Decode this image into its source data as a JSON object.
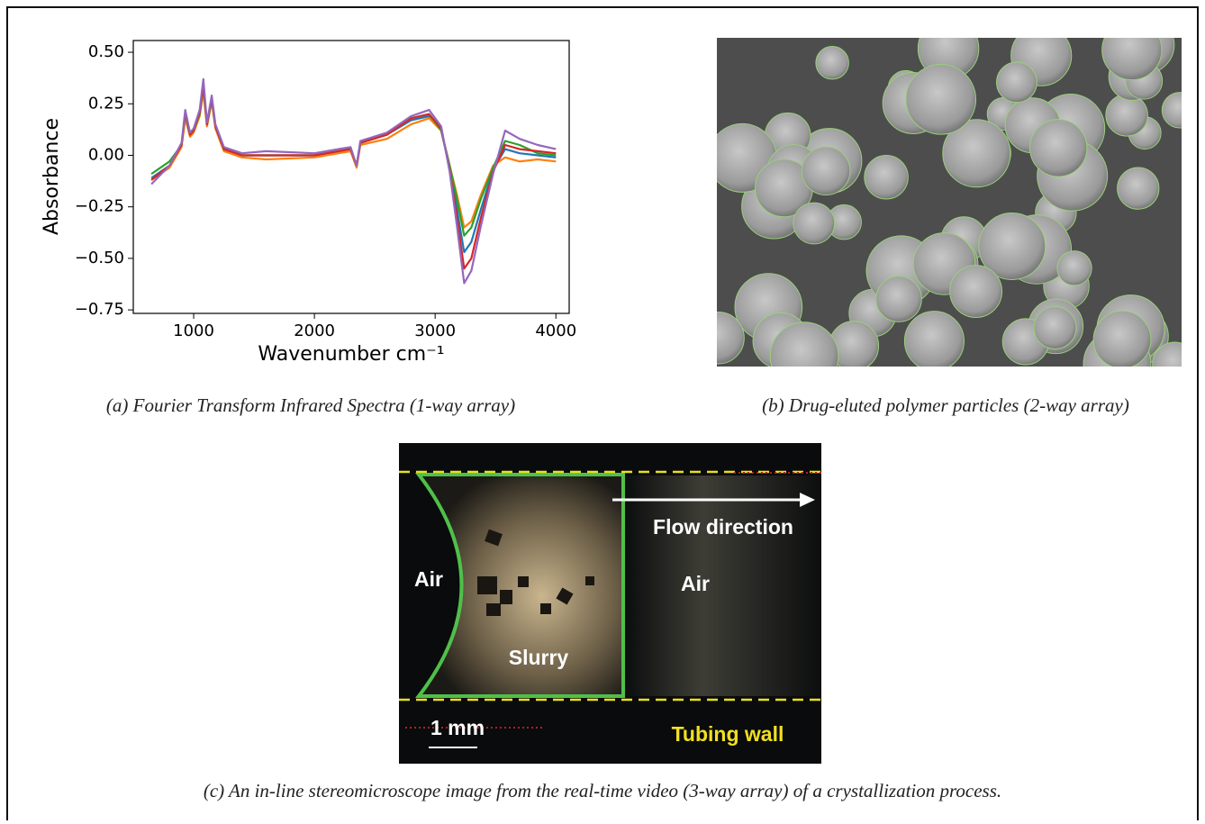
{
  "chart_data": {
    "type": "line",
    "ylabel": "Absorbance",
    "xlabel": "Wavenumber cm⁻¹",
    "x": [
      650,
      800,
      900,
      930,
      970,
      1000,
      1050,
      1080,
      1110,
      1150,
      1180,
      1250,
      1400,
      1600,
      2000,
      2300,
      2350,
      2380,
      2600,
      2800,
      2950,
      3050,
      3120,
      3180,
      3240,
      3300,
      3380,
      3480,
      3580,
      3700,
      3850,
      4000
    ],
    "series": [
      {
        "color": "#1f77b4",
        "values": [
          -0.11,
          -0.05,
          0.05,
          0.2,
          0.1,
          0.12,
          0.2,
          0.33,
          0.15,
          0.27,
          0.14,
          0.03,
          0.0,
          0.0,
          0.0,
          0.03,
          -0.05,
          0.06,
          0.1,
          0.17,
          0.19,
          0.12,
          -0.06,
          -0.26,
          -0.47,
          -0.42,
          -0.26,
          -0.07,
          0.03,
          0.01,
          0.0,
          -0.01
        ]
      },
      {
        "color": "#ff7f0e",
        "values": [
          -0.12,
          -0.06,
          0.04,
          0.18,
          0.09,
          0.11,
          0.19,
          0.31,
          0.14,
          0.26,
          0.13,
          0.02,
          -0.01,
          -0.02,
          -0.01,
          0.02,
          -0.06,
          0.05,
          0.08,
          0.15,
          0.18,
          0.12,
          -0.05,
          -0.19,
          -0.35,
          -0.32,
          -0.19,
          -0.05,
          -0.01,
          -0.03,
          -0.02,
          -0.03
        ]
      },
      {
        "color": "#2ca02c",
        "values": [
          -0.09,
          -0.03,
          0.05,
          0.2,
          0.1,
          0.12,
          0.2,
          0.33,
          0.15,
          0.27,
          0.14,
          0.03,
          0.0,
          0.0,
          0.0,
          0.03,
          -0.05,
          0.06,
          0.1,
          0.18,
          0.2,
          0.12,
          -0.05,
          -0.21,
          -0.39,
          -0.35,
          -0.21,
          -0.06,
          0.07,
          0.05,
          0.01,
          0.0
        ]
      },
      {
        "color": "#d62728",
        "values": [
          -0.12,
          -0.05,
          0.05,
          0.21,
          0.1,
          0.12,
          0.21,
          0.34,
          0.15,
          0.28,
          0.14,
          0.03,
          0.0,
          0.0,
          0.0,
          0.03,
          -0.05,
          0.06,
          0.1,
          0.18,
          0.2,
          0.13,
          -0.07,
          -0.3,
          -0.55,
          -0.5,
          -0.3,
          -0.08,
          0.05,
          0.03,
          0.02,
          0.01
        ]
      },
      {
        "color": "#9467bd",
        "values": [
          -0.14,
          -0.05,
          0.06,
          0.22,
          0.11,
          0.13,
          0.22,
          0.37,
          0.16,
          0.29,
          0.15,
          0.04,
          0.01,
          0.02,
          0.01,
          0.04,
          -0.05,
          0.07,
          0.11,
          0.19,
          0.22,
          0.14,
          -0.08,
          -0.34,
          -0.62,
          -0.56,
          -0.34,
          -0.09,
          0.12,
          0.08,
          0.05,
          0.03
        ]
      }
    ],
    "xlim": [
      500,
      4110
    ],
    "ylim": [
      -0.767,
      0.557
    ],
    "xticks": [
      1000,
      2000,
      3000,
      4000
    ],
    "yticks": [
      {
        "value": 0.5,
        "label": "0.50"
      },
      {
        "value": 0.25,
        "label": "0.25"
      },
      {
        "value": 0,
        "label": "0.00"
      },
      {
        "value": -0.25,
        "label": "−0.25"
      },
      {
        "value": -0.5,
        "label": "−0.50"
      },
      {
        "value": -0.75,
        "label": "−0.75"
      }
    ]
  },
  "captions": {
    "a": "(a) Fourier Transform Infrared Spectra (1-way array)",
    "b": "(b) Drug-eluted polymer particles (2-way array)",
    "c": "(c) An in-line stereomicroscope image from the real-time video (3-way array) of a crystallization process."
  },
  "image_c": {
    "flow": "Flow direction",
    "air_left": "Air",
    "air_right": "Air",
    "slurry": "Slurry",
    "scale": "1 mm",
    "wall": "Tubing wall"
  }
}
